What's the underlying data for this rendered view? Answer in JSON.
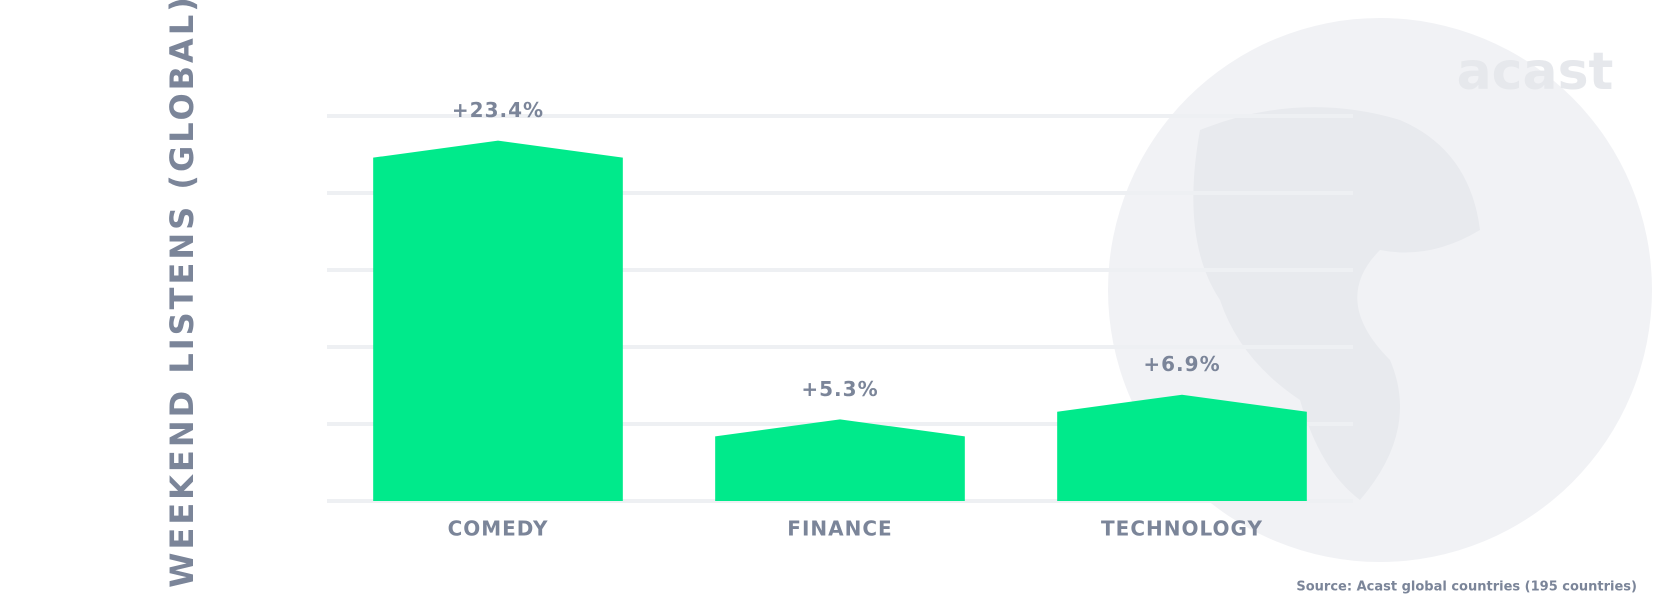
{
  "chart_data": {
    "type": "bar",
    "y_label": "WEEKEND LISTENS (GLOBAL)",
    "categories": [
      "COMEDY",
      "FINANCE",
      "TECHNOLOGY"
    ],
    "values": [
      23.4,
      5.3,
      6.9
    ],
    "value_labels": [
      "+23.4%",
      "+5.3%",
      "+6.9%"
    ],
    "color": "#00ea8b",
    "ylim": [
      0,
      25
    ],
    "source": "Source: Acast global countries (195 countries)",
    "logo": "acast"
  }
}
